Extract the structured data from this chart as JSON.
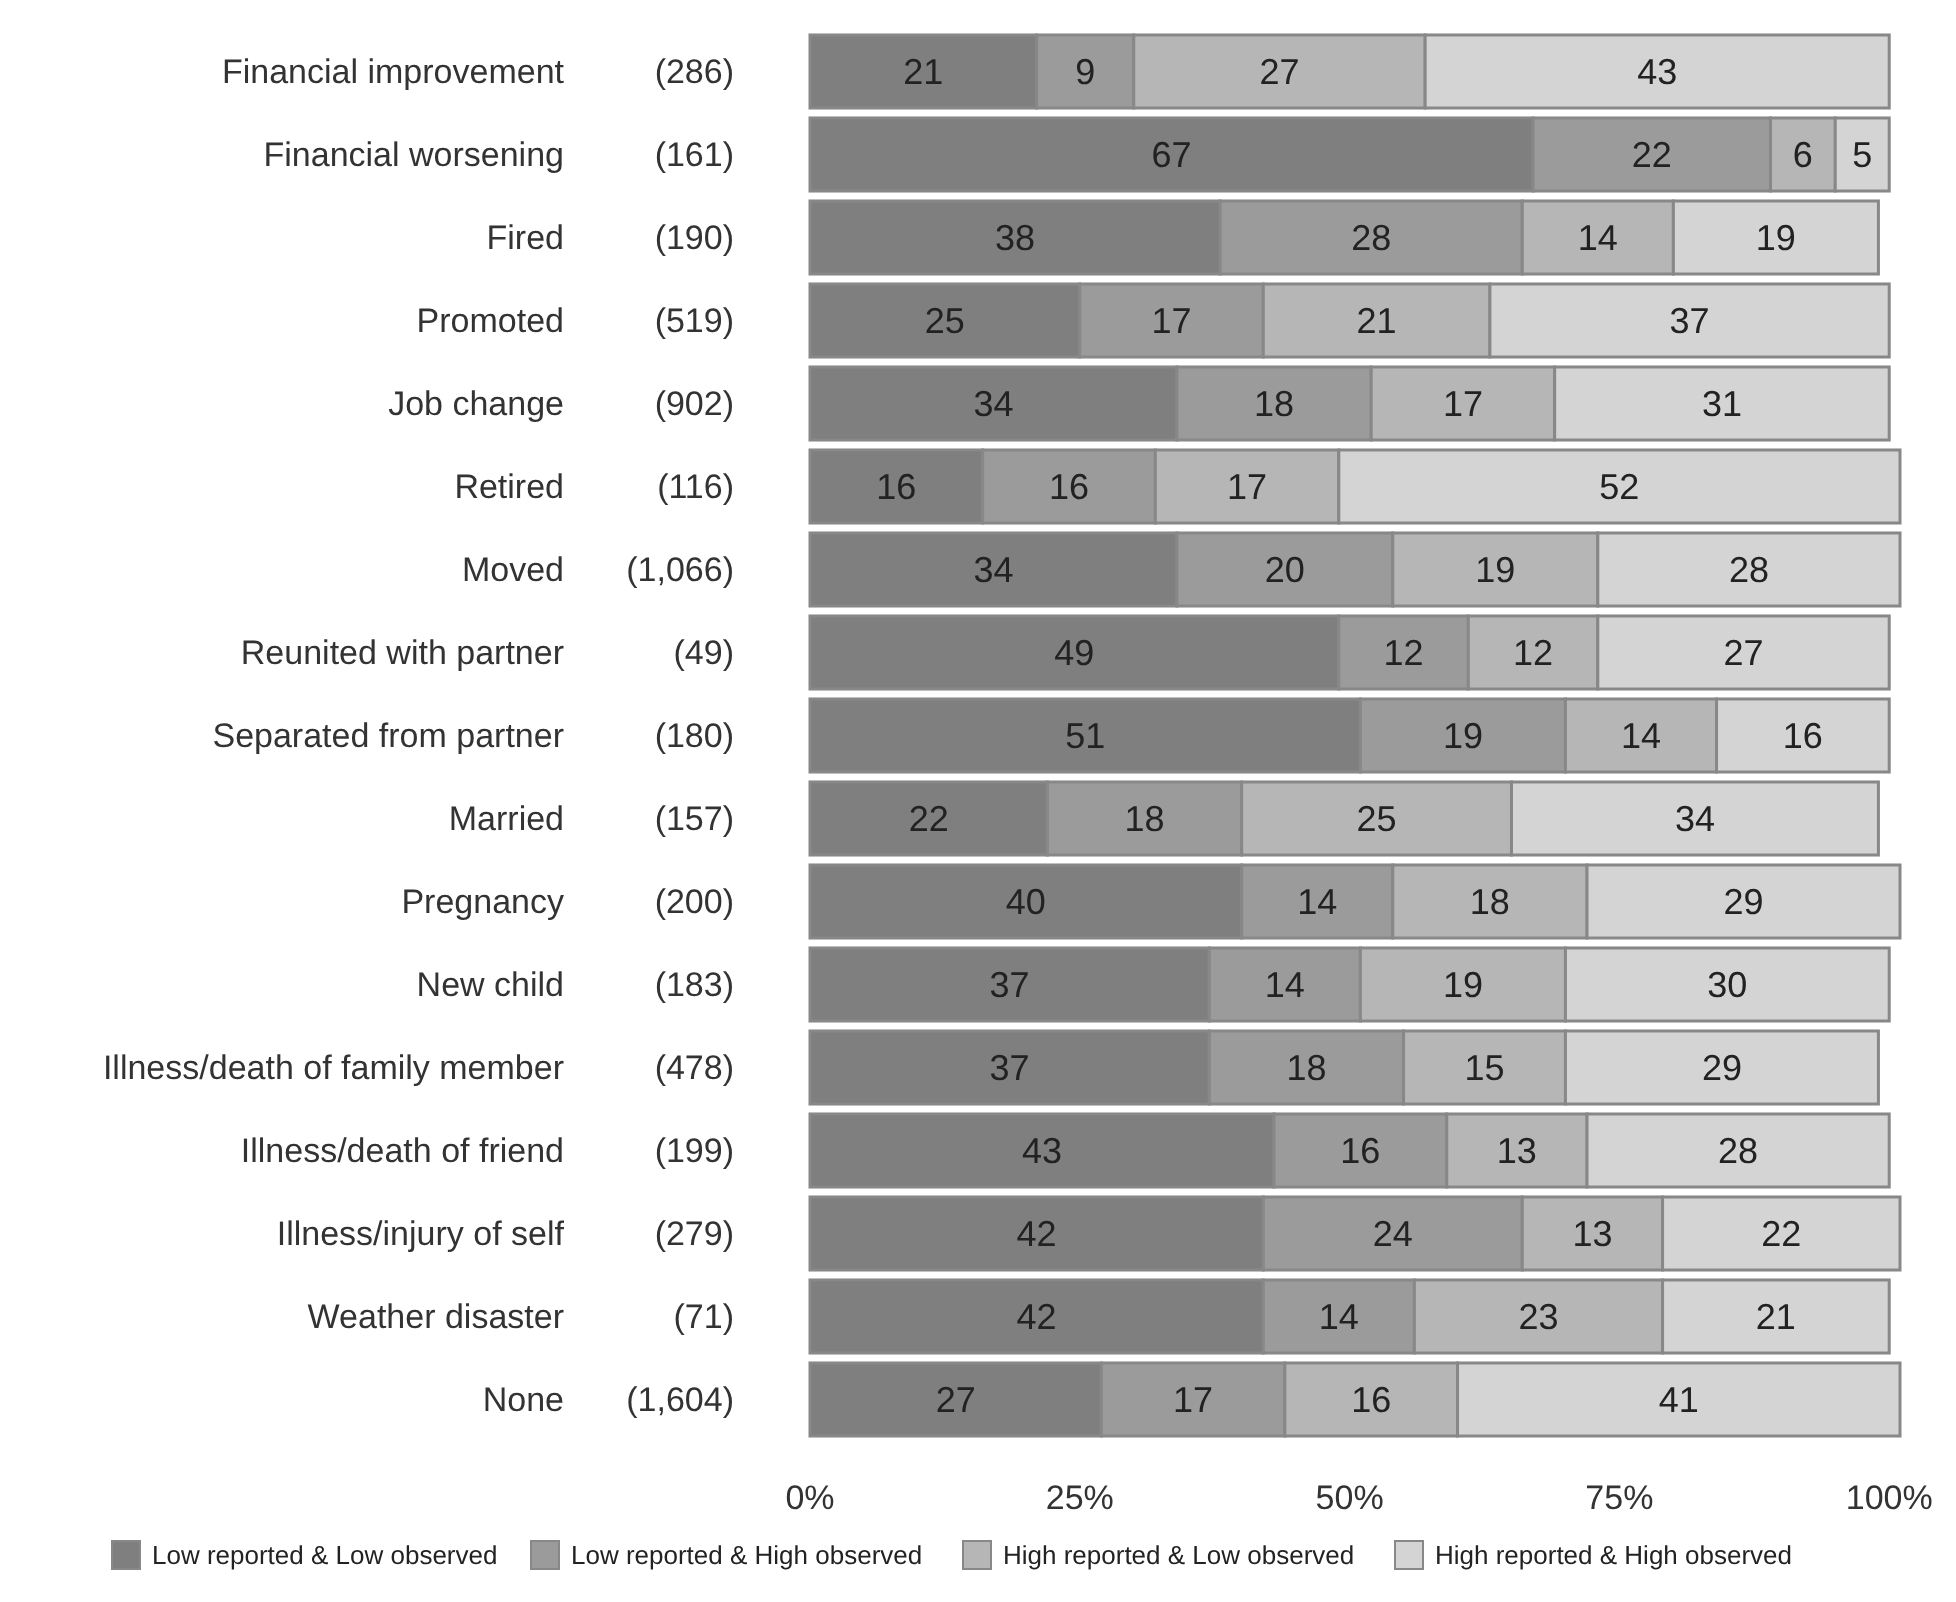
{
  "chart_data": {
    "type": "bar",
    "orientation": "horizontal",
    "stacked": true,
    "data_labels": true,
    "legend": "bottom",
    "grid": false,
    "categories": [
      "Financial improvement",
      "Financial worsening",
      "Fired",
      "Promoted",
      "Job change",
      "Retired",
      "Moved",
      "Reunited with partner",
      "Separated from partner",
      "Married",
      "Pregnancy",
      "New child",
      "Illness/death of family member",
      "Illness/death of friend",
      "Illness/injury of self",
      "Weather disaster",
      "None"
    ],
    "y2_categories": [
      "(286)",
      "(161)",
      "(190)",
      "(519)",
      "(902)",
      "(116)",
      "(1,066)",
      "(49)",
      "(180)",
      "(157)",
      "(200)",
      "(183)",
      "(478)",
      "(199)",
      "(279)",
      "(71)",
      "(1,604)"
    ],
    "xlim": [
      0,
      101
    ],
    "xticks": [
      {
        "value": 0,
        "label": "0%"
      },
      {
        "value": 25,
        "label": "25%"
      },
      {
        "value": 50,
        "label": "50%"
      },
      {
        "value": 75,
        "label": "75%"
      },
      {
        "value": 100,
        "label": "100%"
      }
    ],
    "series": [
      {
        "name": "Low reported & Low observed",
        "color": "#7f7f7f",
        "values": [
          21,
          67,
          38,
          25,
          34,
          16,
          34,
          49,
          51,
          22,
          40,
          37,
          37,
          43,
          42,
          42,
          27
        ]
      },
      {
        "name": "Low reported & High observed",
        "color": "#9b9b9b",
        "values": [
          9,
          22,
          28,
          17,
          18,
          16,
          20,
          12,
          19,
          18,
          14,
          14,
          18,
          16,
          24,
          14,
          17
        ]
      },
      {
        "name": "High reported & Low observed",
        "color": "#b6b6b6",
        "values": [
          27,
          6,
          14,
          21,
          17,
          17,
          19,
          12,
          14,
          25,
          18,
          19,
          15,
          13,
          13,
          23,
          16
        ]
      },
      {
        "name": "High reported & High observed",
        "color": "#d4d4d4",
        "values": [
          43,
          5,
          19,
          37,
          31,
          52,
          28,
          27,
          16,
          34,
          29,
          30,
          29,
          28,
          22,
          21,
          41
        ]
      }
    ]
  }
}
